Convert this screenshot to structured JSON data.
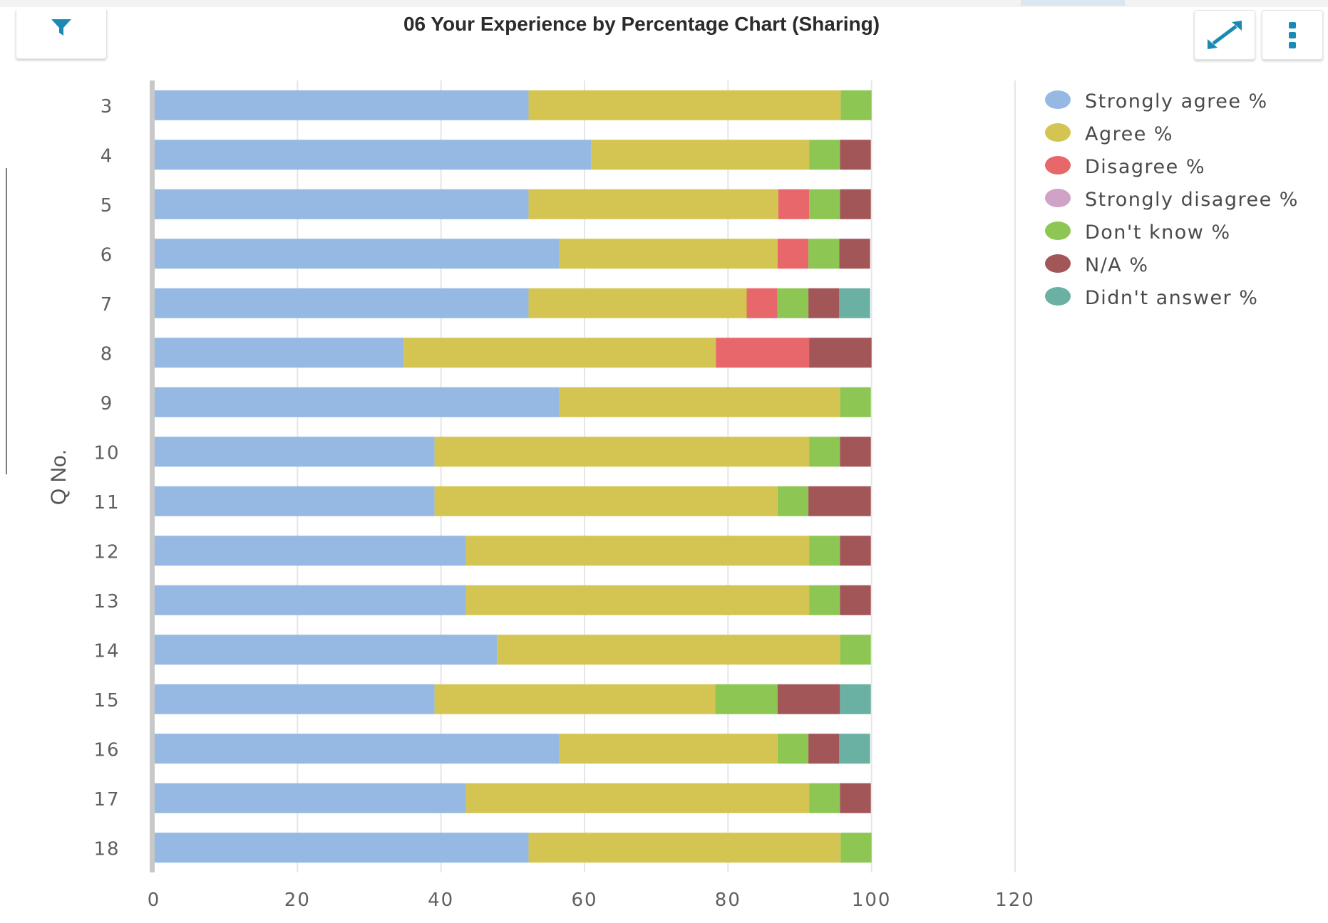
{
  "header": {
    "title": "06 Your Experience by Percentage Chart (Sharing)",
    "filter_icon": "filter-icon",
    "expand_icon": "expand-icon",
    "menu_icon": "kebab-menu-icon"
  },
  "colors": {
    "accent": "#1a8ab4"
  },
  "chart_data": {
    "type": "bar",
    "orientation": "horizontal",
    "stacked": true,
    "title": "06 Your Experience by Percentage Chart (Sharing)",
    "ylabel": "Q No.",
    "xlabel": "",
    "xlim": [
      0,
      120
    ],
    "x_ticks": [
      0,
      20,
      40,
      60,
      80,
      100,
      120
    ],
    "grid": true,
    "legend_position": "right",
    "categories": [
      "3",
      "4",
      "5",
      "6",
      "7",
      "8",
      "9",
      "10",
      "11",
      "12",
      "13",
      "14",
      "15",
      "16",
      "17",
      "18"
    ],
    "series": [
      {
        "name": "Strongly agree %",
        "color": "#95b9e2",
        "values": [
          52.2,
          60.9,
          52.2,
          56.5,
          52.2,
          34.8,
          56.5,
          39.1,
          39.1,
          43.5,
          43.5,
          47.8,
          39.1,
          56.5,
          43.5,
          52.2
        ]
      },
      {
        "name": "Agree %",
        "color": "#d4c552",
        "values": [
          43.5,
          30.4,
          34.8,
          30.4,
          30.4,
          43.5,
          39.1,
          52.2,
          47.8,
          47.8,
          47.8,
          47.8,
          39.1,
          30.4,
          47.8,
          43.5
        ]
      },
      {
        "name": "Disagree %",
        "color": "#e8676a",
        "values": [
          0,
          0,
          4.3,
          4.3,
          4.3,
          13.0,
          0,
          0,
          0,
          0,
          0,
          0,
          0,
          0,
          0,
          0
        ]
      },
      {
        "name": "Strongly disagree %",
        "color": "#cfa3c6",
        "values": [
          0,
          0,
          0,
          0,
          0,
          0,
          0,
          0,
          0,
          0,
          0,
          0,
          0,
          0,
          0,
          0
        ]
      },
      {
        "name": "Don't know %",
        "color": "#8ec653",
        "values": [
          4.3,
          4.3,
          4.3,
          4.3,
          4.3,
          0,
          4.3,
          4.3,
          4.3,
          4.3,
          4.3,
          4.3,
          8.7,
          4.3,
          4.3,
          4.3
        ]
      },
      {
        "name": "N/A %",
        "color": "#a35658",
        "values": [
          0,
          4.3,
          4.3,
          4.3,
          4.3,
          8.7,
          0,
          4.3,
          8.7,
          4.3,
          4.3,
          0,
          8.7,
          4.3,
          4.3,
          0
        ]
      },
      {
        "name": "Didn't answer %",
        "color": "#6bb1a3",
        "values": [
          0,
          0,
          0,
          0,
          4.3,
          0,
          0,
          0,
          0,
          0,
          0,
          0,
          4.3,
          4.3,
          0,
          0
        ]
      }
    ]
  }
}
